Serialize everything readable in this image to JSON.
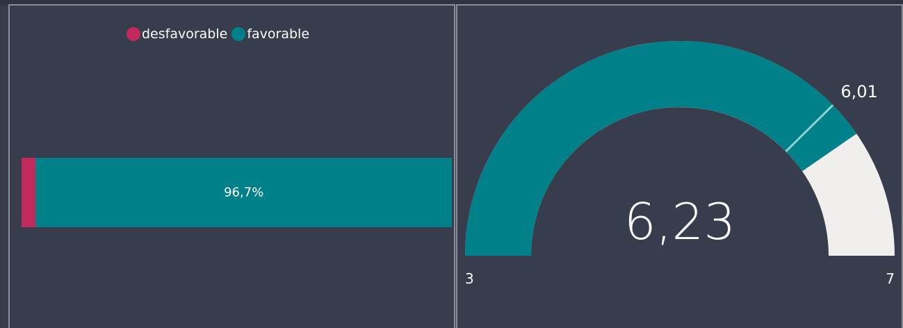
{
  "colors": {
    "background": "#373d4d",
    "favorable": "#00818a",
    "desfavorable": "#c22a5e",
    "gauge_remaining": "#f1efed",
    "target_line": "#8fd4cf",
    "text": "#ffffff"
  },
  "chart_data": [
    {
      "type": "bar",
      "orientation": "horizontal",
      "stacked": "100%",
      "legend": {
        "placement": "top-center",
        "items": [
          {
            "name": "desfavorable",
            "color": "#c22a5e"
          },
          {
            "name": "favorable",
            "color": "#00818a"
          }
        ]
      },
      "series": [
        {
          "name": "desfavorable",
          "values": [
            3.3
          ]
        },
        {
          "name": "favorable",
          "values": [
            96.7
          ]
        }
      ],
      "data_labels": {
        "favorable": "96,7%"
      }
    },
    {
      "type": "gauge",
      "min": 3,
      "max": 7,
      "value": 6.23,
      "target": 6.01,
      "labels": {
        "min": "3",
        "max": "7",
        "value": "6,23",
        "target": "6,01"
      }
    }
  ]
}
